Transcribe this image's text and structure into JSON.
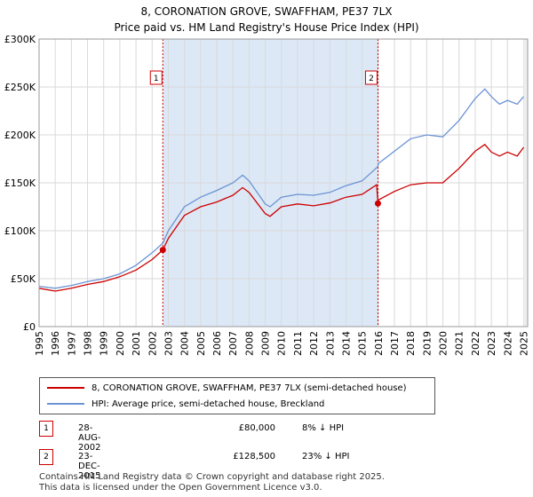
{
  "title": {
    "line1": "8, CORONATION GROVE, SWAFFHAM, PE37 7LX",
    "line2": "Price paid vs. HM Land Registry's House Price Index (HPI)"
  },
  "colors": {
    "property": "#cc0000",
    "hpi": "#6a93d4",
    "shade": "#dde8f6",
    "marker_border": "#cc0000"
  },
  "chart_data": {
    "type": "line",
    "title": "Price paid vs. HM Land Registry's House Price Index (HPI)",
    "xlabel": "",
    "ylabel": "",
    "xlim": [
      1995,
      2025.25
    ],
    "ylim": [
      0,
      300000
    ],
    "y_ticks": [
      0,
      50000,
      100000,
      150000,
      200000,
      250000,
      300000
    ],
    "y_tick_labels": [
      "£0",
      "£50K",
      "£100K",
      "£150K",
      "£200K",
      "£250K",
      "£300K"
    ],
    "x_ticks": [
      1995,
      1996,
      1997,
      1998,
      1999,
      2000,
      2001,
      2002,
      2003,
      2004,
      2005,
      2006,
      2007,
      2008,
      2009,
      2010,
      2011,
      2012,
      2013,
      2014,
      2015,
      2016,
      2017,
      2018,
      2019,
      2020,
      2021,
      2022,
      2023,
      2024,
      2025
    ],
    "grid": true,
    "shaded_period": [
      2002.66,
      2015.98
    ],
    "series": [
      {
        "name": "8, CORONATION GROVE, SWAFFHAM, PE37 7LX (semi-detached house)",
        "x": [
          1995,
          1996,
          1997,
          1998,
          1999,
          2000,
          2001,
          2002,
          2002.66,
          2003,
          2004,
          2005,
          2006,
          2007,
          2007.6,
          2008,
          2009,
          2009.3,
          2010,
          2011,
          2012,
          2013,
          2014,
          2015,
          2015.9,
          2015.98,
          2016,
          2017,
          2018,
          2019,
          2020,
          2021,
          2022,
          2022.6,
          2023,
          2023.5,
          2024,
          2024.6,
          2025
        ],
        "values": [
          40000,
          37000,
          40000,
          44000,
          47000,
          52000,
          59000,
          70000,
          80000,
          92000,
          116000,
          125000,
          130000,
          137000,
          145000,
          140000,
          118000,
          115000,
          125000,
          128000,
          126000,
          129000,
          135000,
          138000,
          148000,
          128500,
          132000,
          141000,
          148000,
          150000,
          150000,
          165000,
          183000,
          190000,
          182000,
          178000,
          182000,
          178000,
          187000
        ]
      },
      {
        "name": "HPI: Average price, semi-detached house, Breckland",
        "x": [
          1995,
          1996,
          1997,
          1998,
          1999,
          2000,
          2001,
          2002,
          2002.66,
          2003,
          2004,
          2005,
          2006,
          2007,
          2007.6,
          2008,
          2009,
          2009.3,
          2010,
          2011,
          2012,
          2013,
          2014,
          2015,
          2015.98,
          2016,
          2017,
          2018,
          2019,
          2020,
          2021,
          2022,
          2022.6,
          2023,
          2023.5,
          2024,
          2024.6,
          2025
        ],
        "values": [
          42000,
          40000,
          43000,
          47000,
          50000,
          55000,
          64000,
          77000,
          87000,
          100000,
          125000,
          135000,
          142000,
          150000,
          158000,
          152000,
          128000,
          125000,
          135000,
          138000,
          137000,
          140000,
          147000,
          152000,
          167000,
          170000,
          183000,
          196000,
          200000,
          198000,
          215000,
          238000,
          248000,
          240000,
          232000,
          236000,
          232000,
          240000
        ]
      }
    ],
    "markers": [
      {
        "label": "1",
        "x": 2002.66,
        "value": 80000
      },
      {
        "label": "2",
        "x": 2015.98,
        "value": 128500
      }
    ]
  },
  "legend": {
    "property_label": "8, CORONATION GROVE, SWAFFHAM, PE37 7LX (semi-detached house)",
    "hpi_label": "HPI: Average price, semi-detached house, Breckland"
  },
  "transactions": [
    {
      "num": "1",
      "date": "28-AUG-2002",
      "price": "£80,000",
      "hpi": "8% ↓ HPI"
    },
    {
      "num": "2",
      "date": "23-DEC-2015",
      "price": "£128,500",
      "hpi": "23% ↓ HPI"
    }
  ],
  "footer": {
    "line1": "Contains HM Land Registry data © Crown copyright and database right 2025.",
    "line2": "This data is licensed under the Open Government Licence v3.0."
  }
}
